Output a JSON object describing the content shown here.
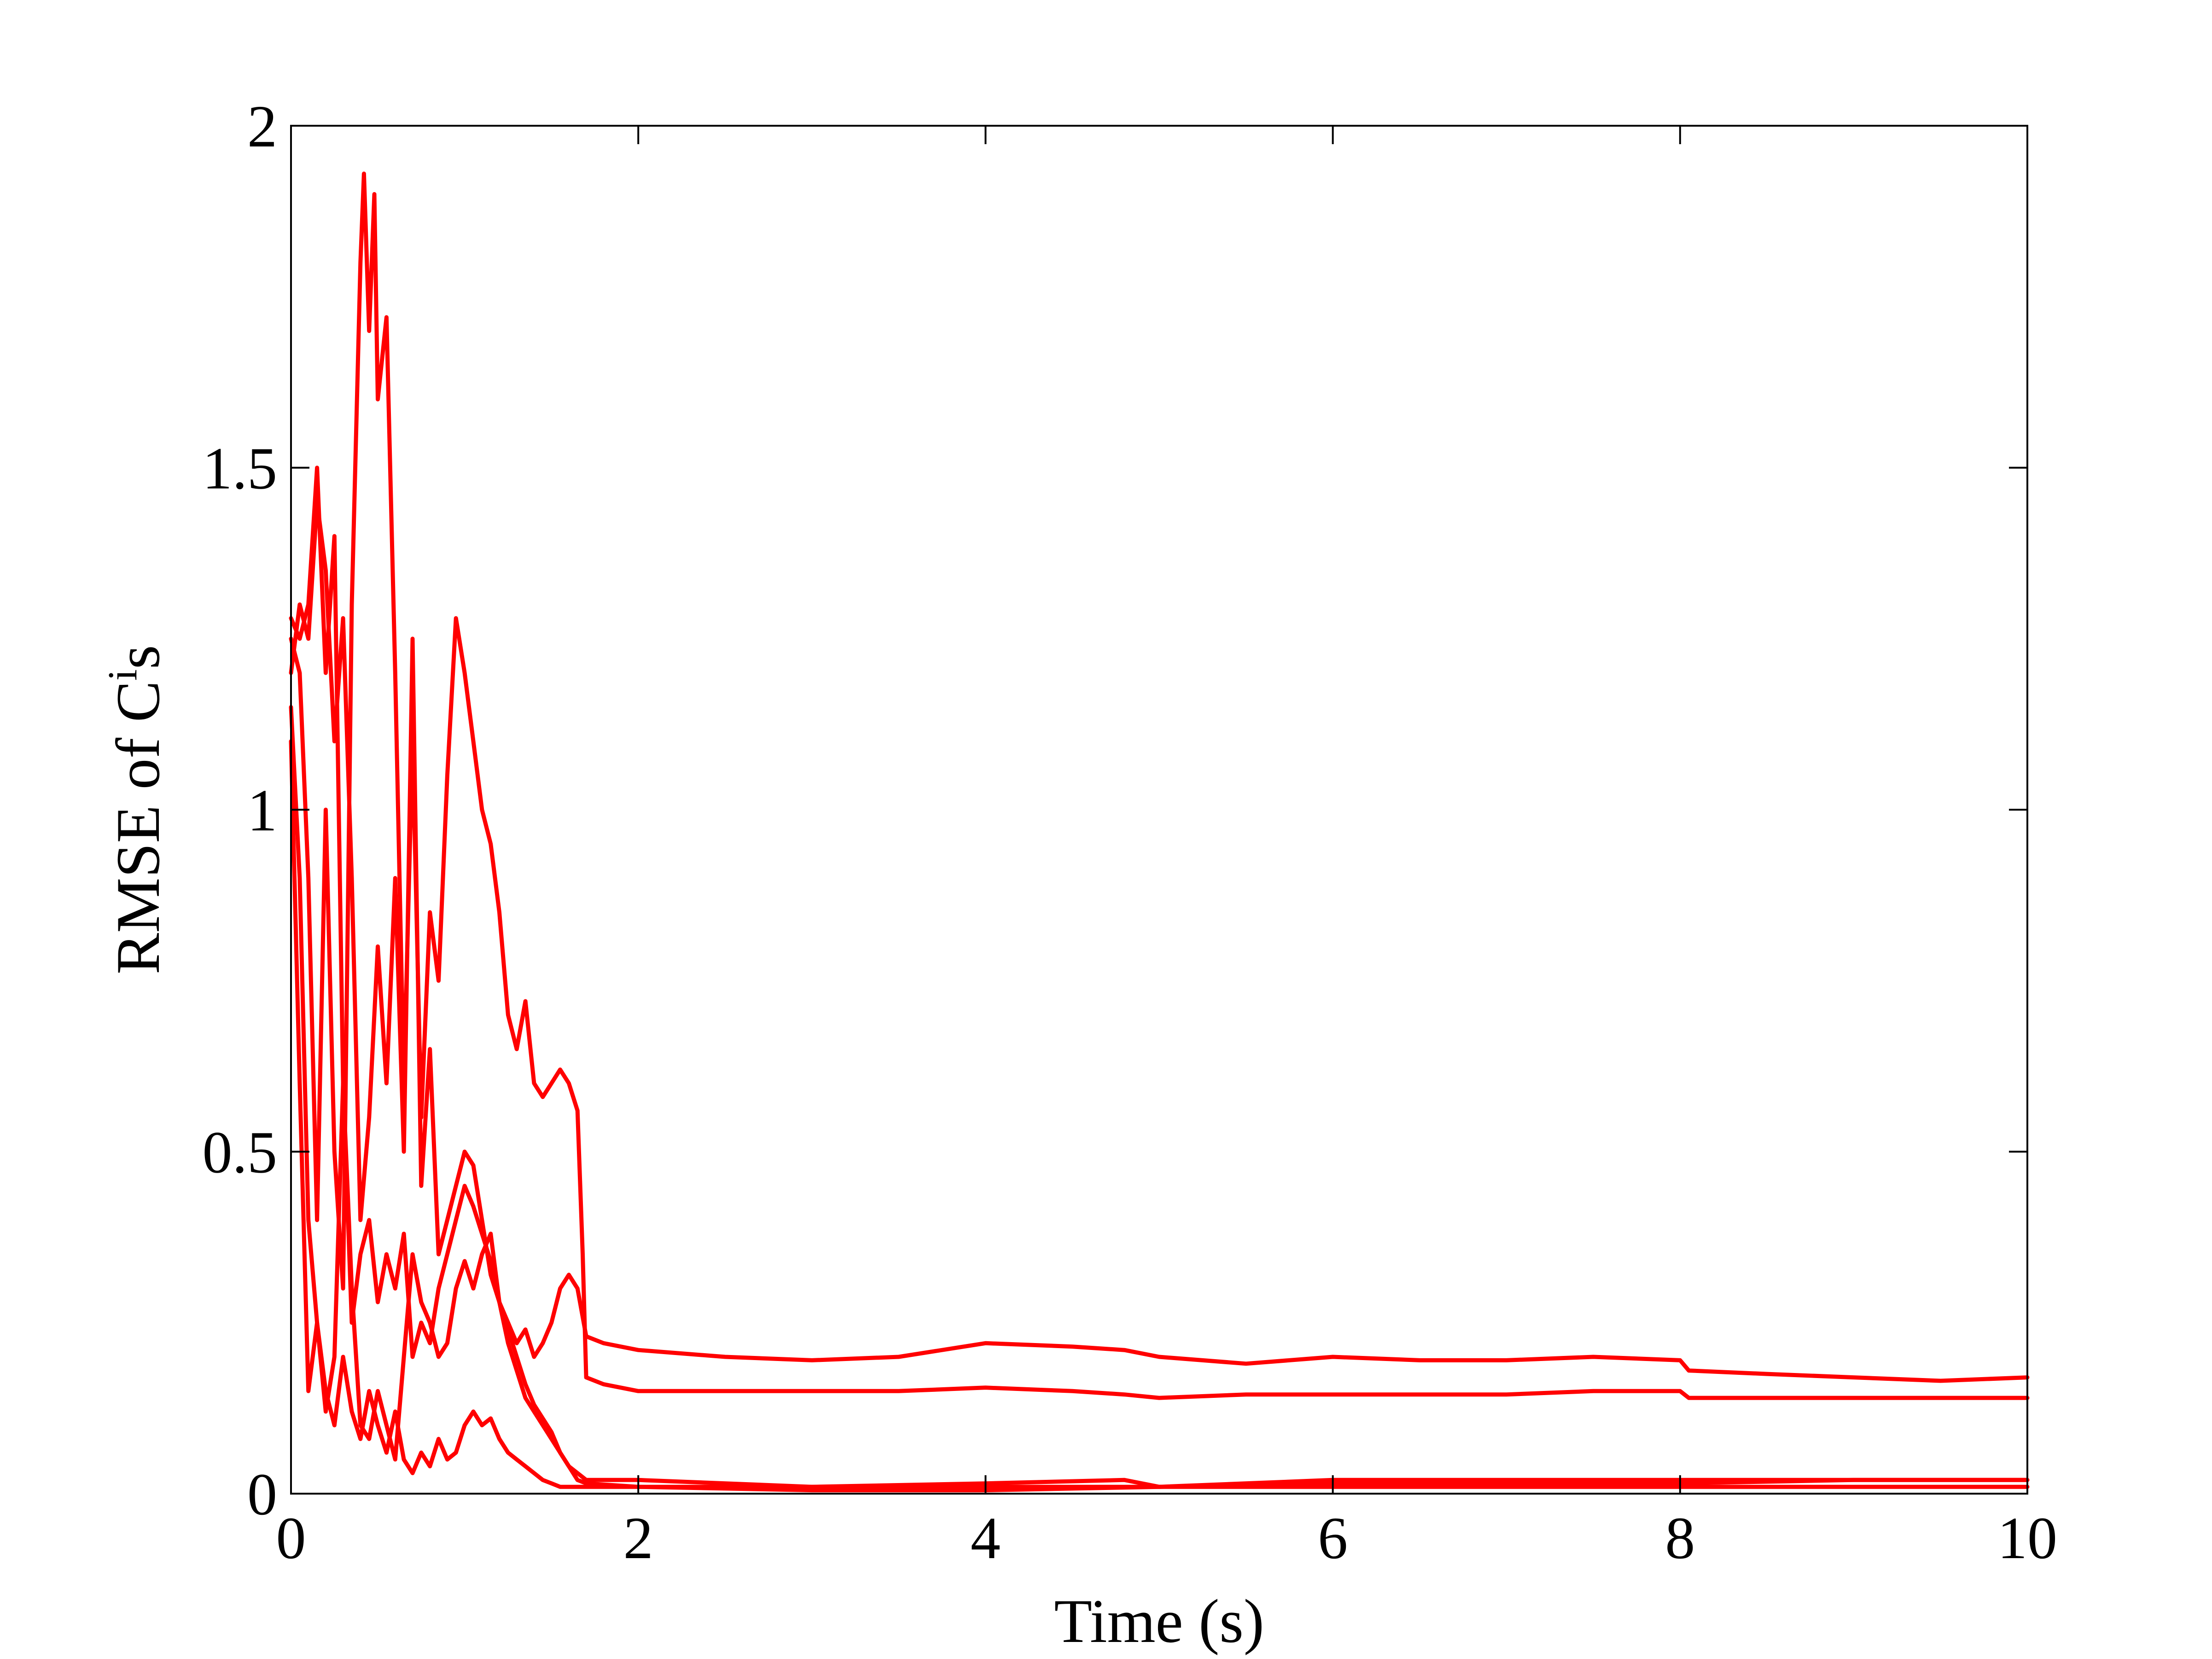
{
  "chart_data": {
    "type": "line",
    "title": "",
    "xlabel": "Time (s)",
    "ylabel": "RMSE of C",
    "ylabel_superscript": "i",
    "ylabel_suffix": "s",
    "xlim": [
      0,
      10
    ],
    "ylim": [
      0,
      2
    ],
    "x_ticks": [
      0,
      2,
      4,
      6,
      8,
      10
    ],
    "y_ticks": [
      0,
      0.5,
      1,
      1.5,
      2
    ],
    "x_tick_labels": [
      "0",
      "2",
      "4",
      "6",
      "8",
      "10"
    ],
    "y_tick_labels": [
      "0",
      "0.5",
      "1",
      "1.5",
      "2"
    ],
    "grid": false,
    "legend": "none",
    "line_color": "#ff0000",
    "series": [
      {
        "x": [
          0,
          0.05,
          0.1,
          0.15,
          0.2,
          0.25,
          0.3,
          0.35,
          0.4,
          0.42,
          0.45,
          0.48,
          0.5,
          0.55,
          0.6,
          0.65,
          0.7,
          0.75,
          0.8,
          0.85,
          0.9,
          0.95,
          1.0,
          1.05,
          1.1,
          1.15,
          1.2,
          1.25,
          1.3,
          1.35,
          1.4,
          1.45,
          1.5,
          1.55,
          1.6,
          1.65,
          1.68,
          1.7,
          1.8,
          2.0,
          2.2,
          2.5,
          3.0,
          3.5,
          4.0,
          4.5,
          4.8,
          5.0,
          5.5,
          6.0,
          6.5,
          7.0,
          7.5,
          8.0,
          8.05,
          8.5,
          9.0,
          9.5,
          10.0
        ],
        "y": [
          1.25,
          1.2,
          0.9,
          0.4,
          1.0,
          0.5,
          0.3,
          1.3,
          1.8,
          1.93,
          1.7,
          1.9,
          1.6,
          1.72,
          1.2,
          0.6,
          1.1,
          0.55,
          0.85,
          0.75,
          1.05,
          1.28,
          1.2,
          1.1,
          1.0,
          0.95,
          0.85,
          0.7,
          0.65,
          0.72,
          0.6,
          0.58,
          0.6,
          0.62,
          0.6,
          0.56,
          0.35,
          0.17,
          0.16,
          0.15,
          0.15,
          0.15,
          0.15,
          0.15,
          0.155,
          0.15,
          0.145,
          0.14,
          0.145,
          0.145,
          0.145,
          0.145,
          0.15,
          0.15,
          0.14,
          0.14,
          0.14,
          0.14,
          0.14
        ]
      },
      {
        "x": [
          0,
          0.05,
          0.1,
          0.15,
          0.2,
          0.25,
          0.3,
          0.35,
          0.4,
          0.45,
          0.5,
          0.55,
          0.6,
          0.65,
          0.7,
          0.75,
          0.8,
          0.85,
          0.9,
          0.95,
          1.0,
          1.05,
          1.1,
          1.15,
          1.2,
          1.25,
          1.3,
          1.35,
          1.4,
          1.45,
          1.5,
          1.55,
          1.6,
          1.65,
          1.7,
          1.8,
          2.0,
          2.5,
          3.0,
          3.5,
          4.0,
          4.5,
          4.8,
          5.0,
          5.5,
          6.0,
          6.5,
          7.0,
          7.5,
          8.0,
          8.05,
          8.5,
          9.0,
          9.5,
          10.0
        ],
        "y": [
          1.2,
          1.3,
          1.25,
          1.45,
          1.35,
          1.1,
          1.28,
          0.9,
          0.4,
          0.55,
          0.8,
          0.6,
          0.9,
          0.5,
          1.25,
          0.45,
          0.65,
          0.35,
          0.4,
          0.45,
          0.5,
          0.48,
          0.4,
          0.32,
          0.28,
          0.25,
          0.22,
          0.24,
          0.2,
          0.22,
          0.25,
          0.3,
          0.32,
          0.3,
          0.23,
          0.22,
          0.21,
          0.2,
          0.195,
          0.2,
          0.22,
          0.215,
          0.21,
          0.2,
          0.19,
          0.2,
          0.195,
          0.195,
          0.2,
          0.195,
          0.18,
          0.175,
          0.17,
          0.165,
          0.17
        ]
      },
      {
        "x": [
          0,
          0.05,
          0.1,
          0.15,
          0.2,
          0.25,
          0.3,
          0.35,
          0.4,
          0.45,
          0.5,
          0.55,
          0.6,
          0.65,
          0.7,
          0.75,
          0.8,
          0.85,
          0.9,
          0.95,
          1.0,
          1.05,
          1.1,
          1.15,
          1.2,
          1.25,
          1.3,
          1.35,
          1.4,
          1.45,
          1.5,
          1.55,
          1.6,
          1.65,
          1.7,
          2.0,
          3.0,
          4.0,
          4.8,
          5.0,
          6.0,
          7.0,
          8.0,
          9.0,
          10.0
        ],
        "y": [
          1.1,
          0.6,
          0.15,
          0.25,
          0.12,
          0.2,
          0.6,
          0.25,
          0.35,
          0.4,
          0.28,
          0.35,
          0.3,
          0.38,
          0.2,
          0.25,
          0.22,
          0.3,
          0.35,
          0.4,
          0.45,
          0.42,
          0.38,
          0.34,
          0.28,
          0.22,
          0.18,
          0.14,
          0.12,
          0.1,
          0.08,
          0.06,
          0.04,
          0.03,
          0.02,
          0.02,
          0.01,
          0.015,
          0.02,
          0.01,
          0.015,
          0.015,
          0.015,
          0.02,
          0.02
        ]
      },
      {
        "x": [
          0,
          0.05,
          0.1,
          0.15,
          0.2,
          0.25,
          0.3,
          0.35,
          0.4,
          0.45,
          0.5,
          0.55,
          0.6,
          0.65,
          0.7,
          0.75,
          0.8,
          0.85,
          0.9,
          0.95,
          1.0,
          1.05,
          1.1,
          1.15,
          1.2,
          1.25,
          1.3,
          1.35,
          1.4,
          1.45,
          1.5,
          1.55,
          1.6,
          1.65,
          1.7,
          2.0,
          3.0,
          4.0,
          5.0,
          6.0,
          7.0,
          8.0,
          9.0,
          10.0
        ],
        "y": [
          1.15,
          0.9,
          0.4,
          0.25,
          0.15,
          0.1,
          0.2,
          0.12,
          0.08,
          0.15,
          0.1,
          0.06,
          0.12,
          0.05,
          0.03,
          0.06,
          0.04,
          0.08,
          0.05,
          0.06,
          0.1,
          0.12,
          0.1,
          0.11,
          0.08,
          0.06,
          0.05,
          0.04,
          0.03,
          0.02,
          0.015,
          0.01,
          0.01,
          0.01,
          0.01,
          0.01,
          0.005,
          0.005,
          0.01,
          0.01,
          0.01,
          0.01,
          0.01,
          0.01
        ]
      },
      {
        "x": [
          0,
          0.05,
          0.1,
          0.15,
          0.2,
          0.25,
          0.3,
          0.35,
          0.4,
          0.45,
          0.5,
          0.55,
          0.6,
          0.65,
          0.7,
          0.75,
          0.8,
          0.85,
          0.9,
          0.95,
          1.0,
          1.05,
          1.1,
          1.15,
          1.2,
          1.25,
          1.3,
          1.35,
          1.4,
          1.45,
          1.5,
          1.55,
          1.6,
          1.65,
          1.7,
          2.0,
          3.0,
          4.0,
          5.0,
          6.0,
          7.0,
          8.0,
          9.0,
          10.0
        ],
        "y": [
          1.28,
          1.25,
          1.3,
          1.5,
          1.2,
          1.4,
          0.6,
          0.3,
          0.1,
          0.08,
          0.15,
          0.1,
          0.05,
          0.2,
          0.35,
          0.28,
          0.25,
          0.2,
          0.22,
          0.3,
          0.34,
          0.3,
          0.35,
          0.38,
          0.28,
          0.24,
          0.2,
          0.16,
          0.13,
          0.11,
          0.09,
          0.06,
          0.04,
          0.02,
          0.015,
          0.01,
          0.01,
          0.01,
          0.01,
          0.02,
          0.02,
          0.02,
          0.02,
          0.02
        ]
      }
    ]
  }
}
